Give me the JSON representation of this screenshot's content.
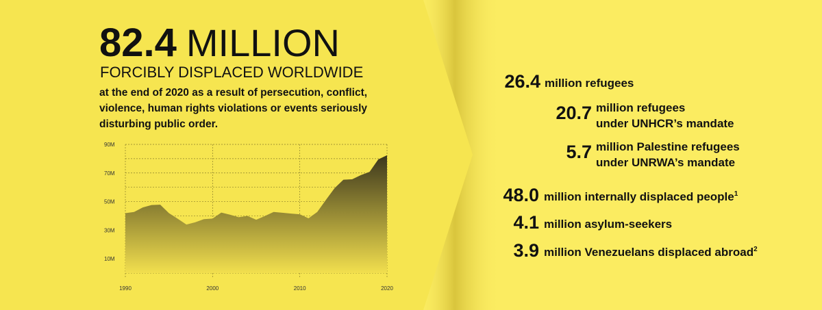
{
  "headline": {
    "number": "82.4",
    "unit": "MILLION",
    "subtitle": "FORCIBLY DISPLACED WORLDWIDE",
    "description": [
      "at the end of 2020 as a result of persecution, conflict,",
      "violence, human rights violations or events seriously",
      "disturbing public order."
    ]
  },
  "stats": [
    {
      "number": "26.4",
      "lines": [
        "million refugees"
      ]
    },
    {
      "number": "20.7",
      "lines": [
        "million refugees",
        "under UNHCR’s mandate"
      ]
    },
    {
      "number": "5.7",
      "lines": [
        "million Palestine refugees",
        "under UNRWA’s mandate"
      ]
    },
    {
      "number": "48.0",
      "lines": [
        "million internally displaced people"
      ],
      "note": "1"
    },
    {
      "number": "4.1",
      "lines": [
        "million asylum-seekers"
      ]
    },
    {
      "number": "3.9",
      "lines": [
        "million Venezuelans displaced abroad"
      ],
      "note": "2"
    }
  ],
  "chart_data": {
    "type": "area",
    "x": [
      1990,
      1991,
      1992,
      1993,
      1994,
      1995,
      1996,
      1997,
      1998,
      1999,
      2000,
      2001,
      2002,
      2003,
      2004,
      2005,
      2006,
      2007,
      2008,
      2009,
      2010,
      2011,
      2012,
      2013,
      2014,
      2015,
      2016,
      2017,
      2018,
      2019,
      2020
    ],
    "values": [
      41900000,
      42700000,
      45900000,
      47600000,
      47800000,
      41900000,
      38000000,
      33900000,
      35500000,
      37700000,
      38100000,
      42300000,
      40800000,
      39100000,
      40000000,
      37300000,
      39900000,
      42700000,
      42200000,
      41600000,
      41100000,
      38300000,
      42700000,
      51200000,
      59500000,
      65300000,
      65600000,
      68500000,
      70800000,
      79500000,
      82400000
    ],
    "xlim": [
      1990,
      2020
    ],
    "xticks": [
      1990,
      2000,
      2010,
      2020
    ],
    "ylim": [
      0,
      90000000
    ],
    "yticks": [
      {
        "value": 90000000,
        "label": "90M"
      },
      {
        "value": 70000000,
        "label": "70M"
      },
      {
        "value": 50000000,
        "label": "50M"
      },
      {
        "value": 30000000,
        "label": "30M"
      },
      {
        "value": 10000000,
        "label": "10M"
      }
    ],
    "minor_grid": [
      80000000,
      60000000,
      40000000,
      20000000,
      0
    ],
    "grid": true,
    "color_top": "#2b2718",
    "color_bottom": "#f2df4e"
  }
}
